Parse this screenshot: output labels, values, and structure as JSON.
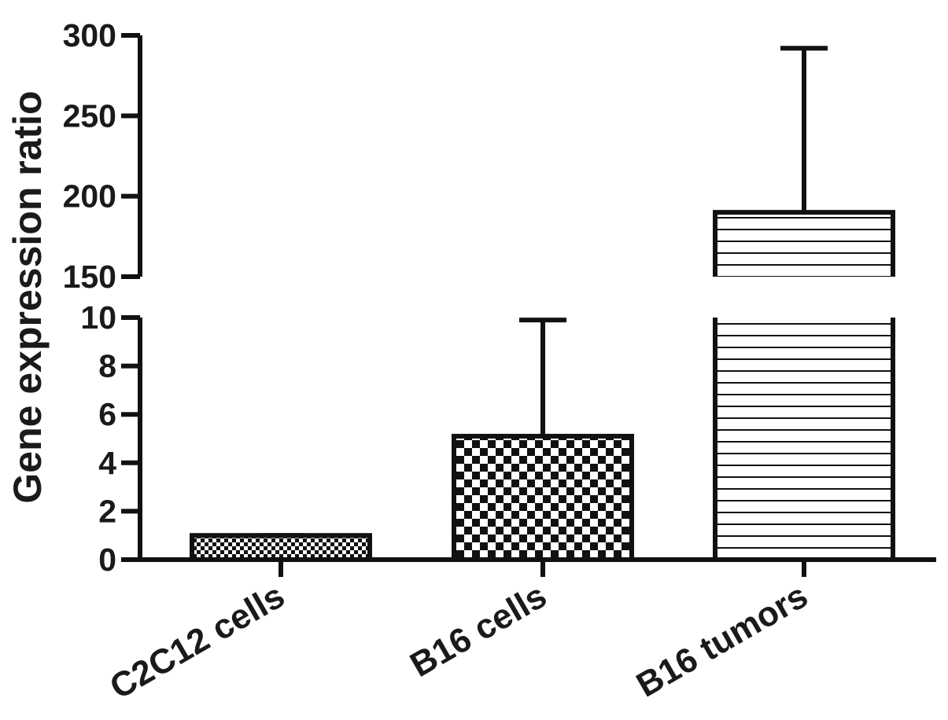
{
  "chart_data": {
    "type": "bar",
    "ylabel": "Gene expression ratio",
    "xlabel": "",
    "title": "",
    "y_axis_scale": "broken",
    "y_segments": [
      {
        "range": [
          0,
          10
        ],
        "ticks": [
          0,
          2,
          4,
          6,
          8,
          10
        ],
        "tick_labels": [
          "0",
          "2",
          "4",
          "6",
          "8",
          "10"
        ]
      },
      {
        "range": [
          150,
          300
        ],
        "ticks": [
          150,
          200,
          250,
          300
        ],
        "tick_labels": [
          "150",
          "200",
          "250",
          "300"
        ]
      }
    ],
    "categories": [
      "C2C12 cells",
      "B16 cells",
      "B16 tumors"
    ],
    "series": [
      {
        "values": [
          1,
          5.1,
          190
        ],
        "error_upper": [
          1,
          9.9,
          292
        ],
        "patterns": [
          "fine-checker",
          "checker",
          "horizontal-lines"
        ]
      }
    ],
    "grid": false,
    "legend": "none"
  }
}
